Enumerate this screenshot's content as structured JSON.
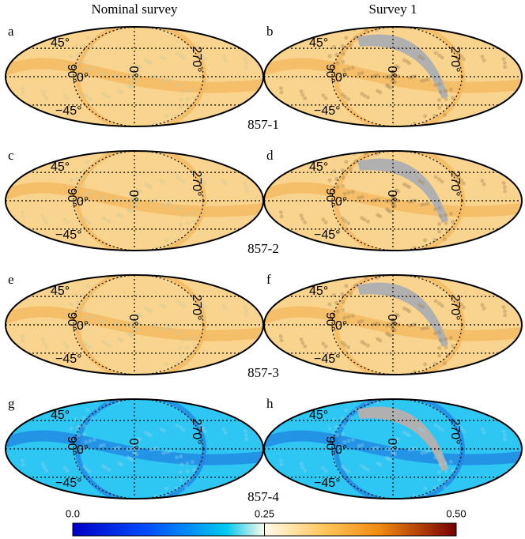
{
  "column_titles": [
    "Nominal survey",
    "Survey 1"
  ],
  "grid_labels": {
    "lat_north": "45°",
    "equator": "0°",
    "lat_south": "−45°",
    "lon_90": "90°",
    "lon_0": "0°",
    "lon_270": "270°"
  },
  "rows": [
    {
      "detector": "857-1",
      "panels": [
        "a",
        "b"
      ]
    },
    {
      "detector": "857-2",
      "panels": [
        "c",
        "d"
      ]
    },
    {
      "detector": "857-3",
      "panels": [
        "e",
        "f"
      ]
    },
    {
      "detector": "857-4",
      "panels": [
        "g",
        "h"
      ]
    }
  ],
  "colorbar": {
    "lim": [
      0,
      0.5
    ],
    "ticks": [
      {
        "value": 0,
        "label": "0.0"
      },
      0.25,
      {
        "value": 0.5,
        "label": "0.50"
      }
    ]
  }
}
